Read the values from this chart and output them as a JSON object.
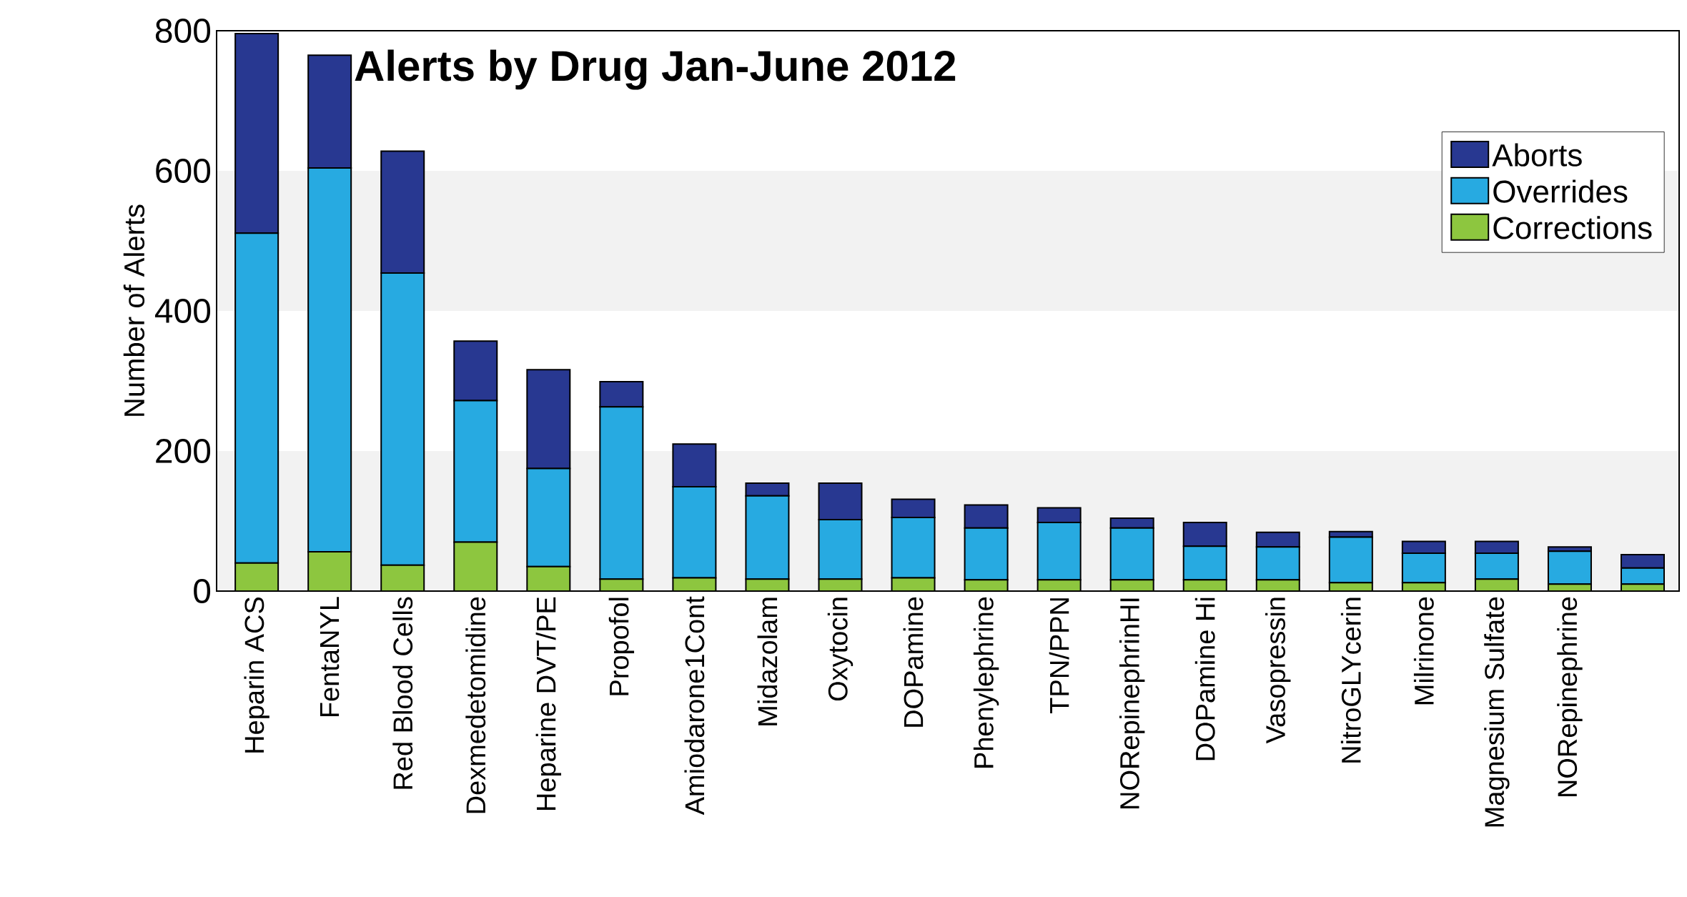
{
  "chart_data": {
    "type": "bar",
    "stacked": true,
    "title": "Alerts by Drug Jan-June 2012",
    "ylabel": "Number of Alerts",
    "categories": [
      "Heparin ACS",
      "FentaNYL",
      "Red Blood Cells",
      "Dexmedetomidine",
      "Heparine DVT/PE",
      "Propofol",
      "Amiodarone1Cont",
      "Midazolam",
      "Oxytocin",
      "DOPamine",
      "Phenylephrine",
      "TPN/PPN",
      "NORepinephrinHI",
      "DOPamine Hi",
      "Vasopressin",
      "NitroGLYcerin",
      "Milrinone",
      "Magnesium Sulfate",
      "NORepinephrine",
      null
    ],
    "series": [
      {
        "name": "Corrections",
        "color": "#8dc63f",
        "values": [
          40,
          56,
          37,
          70,
          35,
          17,
          19,
          17,
          17,
          19,
          16,
          16,
          16,
          16,
          16,
          12,
          12,
          17,
          10,
          10
        ]
      },
      {
        "name": "Overrides",
        "color": "#27aae1",
        "values": [
          471,
          548,
          417,
          202,
          140,
          246,
          130,
          119,
          85,
          86,
          74,
          82,
          74,
          48,
          47,
          65,
          42,
          37,
          47,
          23
        ]
      },
      {
        "name": "Aborts",
        "color": "#283891",
        "values": [
          285,
          161,
          174,
          85,
          141,
          36,
          61,
          18,
          52,
          26,
          33,
          21,
          14,
          34,
          21,
          8,
          17,
          17,
          6,
          19
        ]
      }
    ],
    "ylim": [
      0,
      800
    ],
    "yticks": [
      0,
      200,
      400,
      600,
      800
    ],
    "bands": [
      {
        "axis": "y",
        "from": 0,
        "to": 200,
        "color": "#f2f2f2"
      },
      {
        "axis": "y",
        "from": 400,
        "to": 600,
        "color": "#f2f2f2"
      }
    ],
    "legend": "top right"
  }
}
